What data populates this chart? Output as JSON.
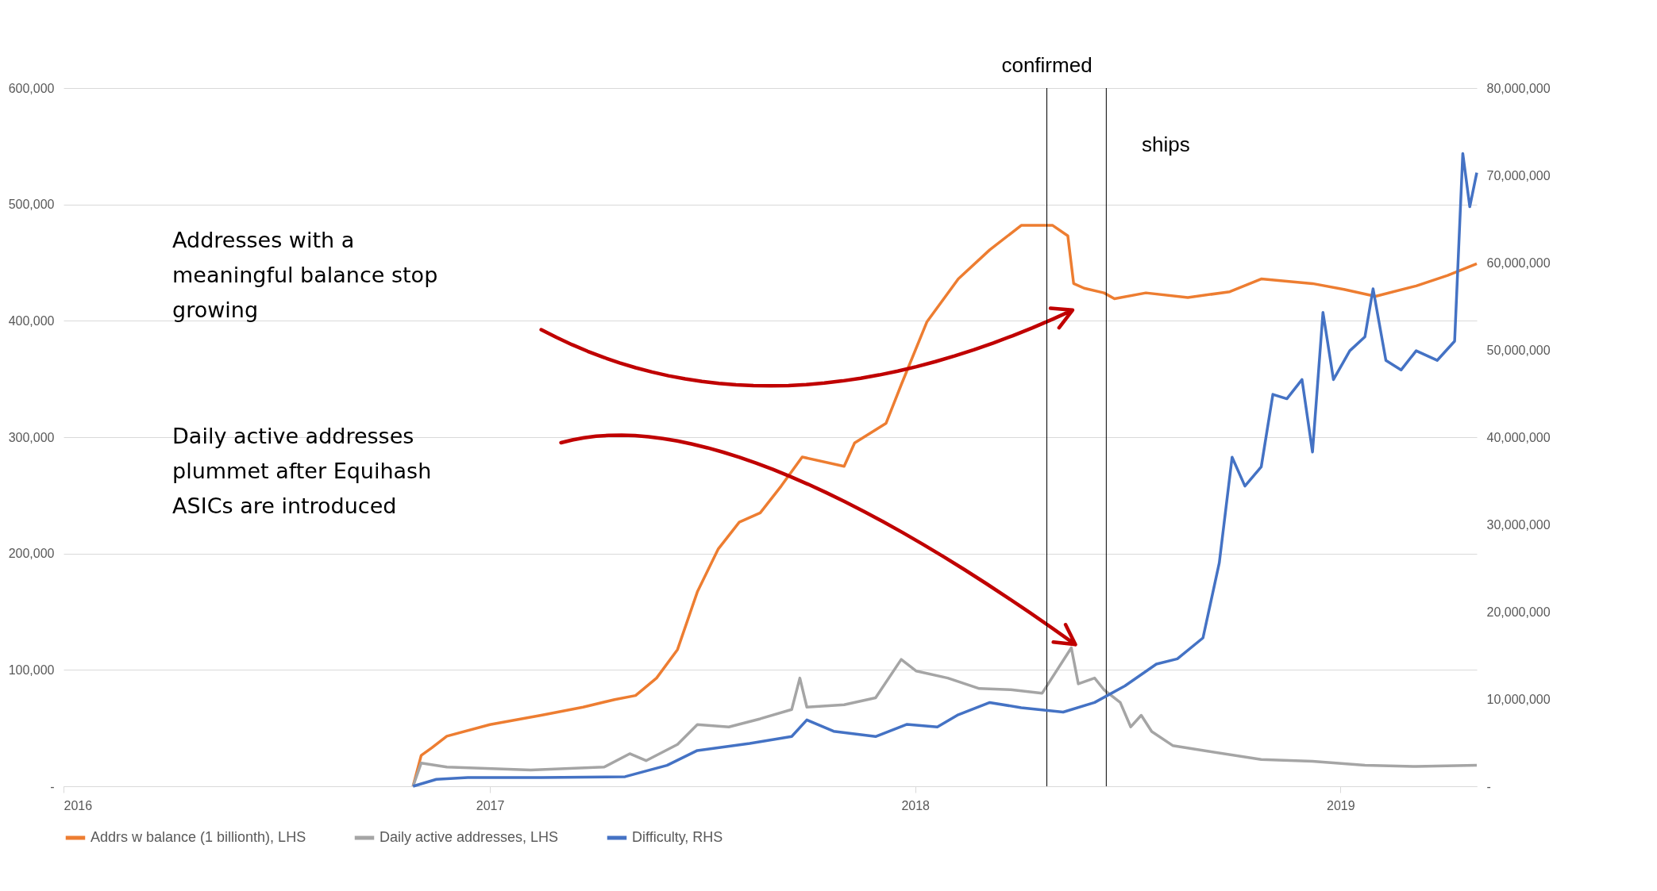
{
  "chart_data": {
    "type": "line",
    "series": [
      {
        "name": "Addrs w balance (1 billionth), LHS",
        "color": "#ed7d31",
        "x": [
          "2016-10-27",
          "2016-11-03",
          "2016-11-12",
          "2016-11-25",
          "2017-01-01",
          "2017-02-14",
          "2017-03-22",
          "2017-04-18",
          "2017-05-06",
          "2017-05-24",
          "2017-06-11",
          "2017-06-28",
          "2017-07-16",
          "2017-08-03",
          "2017-08-21",
          "2017-09-08",
          "2017-09-26",
          "2017-11-01",
          "2017-11-10",
          "2017-12-07",
          "2017-12-20",
          "2018-01-11",
          "2018-02-07",
          "2018-03-06",
          "2018-04-02",
          "2018-04-29",
          "2018-05-12",
          "2018-05-17",
          "2018-05-26",
          "2018-06-12",
          "2018-06-21",
          "2018-07-18",
          "2018-08-23",
          "2018-09-28",
          "2018-10-25",
          "2018-12-08",
          "2019-01-04",
          "2019-01-31",
          "2019-03-07",
          "2019-04-03",
          "2019-04-28"
        ],
        "values": [
          0,
          26500,
          33000,
          43000,
          53000,
          61000,
          68000,
          74500,
          78000,
          93000,
          117500,
          167000,
          204000,
          227000,
          235000,
          258000,
          283000,
          275000,
          295000,
          312000,
          345000,
          399000,
          436000,
          461000,
          482000,
          482000,
          473000,
          432000,
          428000,
          424000,
          419000,
          424000,
          420000,
          425000,
          436000,
          432000,
          427000,
          421000,
          430000,
          439000,
          449000
        ]
      },
      {
        "name": "Daily active addresses, LHS",
        "color": "#a5a5a5",
        "x": [
          "2016-10-27",
          "2016-11-03",
          "2016-11-25",
          "2017-02-05",
          "2017-04-09",
          "2017-05-01",
          "2017-05-15",
          "2017-06-11",
          "2017-06-28",
          "2017-07-25",
          "2017-08-21",
          "2017-09-17",
          "2017-09-24",
          "2017-09-30",
          "2017-11-01",
          "2017-11-28",
          "2017-12-20",
          "2018-01-02",
          "2018-01-29",
          "2018-02-25",
          "2018-03-24",
          "2018-04-20",
          "2018-05-15",
          "2018-05-21",
          "2018-06-04",
          "2018-06-12",
          "2018-06-26",
          "2018-07-05",
          "2018-07-14",
          "2018-07-23",
          "2018-08-10",
          "2018-09-10",
          "2018-10-25",
          "2018-12-08",
          "2019-01-22",
          "2019-03-07",
          "2019-04-28"
        ],
        "values": [
          0,
          20000,
          16500,
          14000,
          16500,
          28000,
          22000,
          36000,
          53000,
          51000,
          58000,
          66000,
          93000,
          68000,
          70000,
          76000,
          109000,
          99000,
          93000,
          84000,
          83000,
          80000,
          119000,
          88000,
          93000,
          83000,
          72000,
          51000,
          61000,
          47000,
          35000,
          30000,
          23000,
          21500,
          18000,
          17000,
          18000
        ]
      },
      {
        "name": "Difficulty, RHS",
        "color": "#4472c4",
        "axis": "y2",
        "x": [
          "2016-10-27",
          "2016-11-16",
          "2016-12-13",
          "2017-02-14",
          "2017-04-27",
          "2017-06-02",
          "2017-06-28",
          "2017-08-12",
          "2017-09-17",
          "2017-09-30",
          "2017-10-23",
          "2017-11-28",
          "2017-12-25",
          "2018-01-20",
          "2018-02-07",
          "2018-03-06",
          "2018-04-02",
          "2018-05-08",
          "2018-06-04",
          "2018-06-30",
          "2018-07-27",
          "2018-08-14",
          "2018-09-05",
          "2018-09-19",
          "2018-09-30",
          "2018-10-11",
          "2018-10-25",
          "2018-11-04",
          "2018-11-16",
          "2018-11-29",
          "2018-12-08",
          "2018-12-17",
          "2018-12-26",
          "2019-01-09",
          "2019-01-22",
          "2019-01-29",
          "2019-02-09",
          "2019-02-22",
          "2019-03-07",
          "2019-03-25",
          "2019-04-09",
          "2019-04-16",
          "2019-04-22",
          "2019-04-28"
        ],
        "values": [
          0,
          800000,
          1000000,
          1000000,
          1100000,
          2400000,
          4100000,
          4900000,
          5700000,
          7600000,
          6300000,
          5700000,
          7100000,
          6800000,
          8200000,
          9600000,
          9000000,
          8500000,
          9600000,
          11500000,
          14000000,
          14600000,
          17000000,
          25600000,
          37700000,
          34400000,
          36600000,
          44900000,
          44400000,
          46600000,
          38300000,
          54300000,
          46600000,
          49900000,
          51500000,
          57000000,
          48800000,
          47700000,
          49900000,
          48800000,
          51000000,
          72500000,
          66400000,
          70300000
        ]
      }
    ],
    "xlim": [
      "2016-01-01",
      "2019-04-28"
    ],
    "xticks": [
      "2016",
      "2017",
      "2018",
      "2019"
    ],
    "ylim": [
      0,
      600000
    ],
    "yticks": [
      {
        "value": 0,
        "label": "-"
      },
      {
        "value": 100000,
        "label": "100,000"
      },
      {
        "value": 200000,
        "label": "200,000"
      },
      {
        "value": 300000,
        "label": "300,000"
      },
      {
        "value": 400000,
        "label": "400,000"
      },
      {
        "value": 500000,
        "label": "500,000"
      },
      {
        "value": 600000,
        "label": "600,000"
      }
    ],
    "y2lim": [
      0,
      80000000
    ],
    "y2ticks": [
      {
        "value": 0,
        "label": "-"
      },
      {
        "value": 10000000,
        "label": "10,000,000"
      },
      {
        "value": 20000000,
        "label": "20,000,000"
      },
      {
        "value": 30000000,
        "label": "30,000,000"
      },
      {
        "value": 40000000,
        "label": "40,000,000"
      },
      {
        "value": 50000000,
        "label": "50,000,000"
      },
      {
        "value": 60000000,
        "label": "60,000,000"
      },
      {
        "value": 70000000,
        "label": "70,000,000"
      },
      {
        "value": 80000000,
        "label": "80,000,000"
      }
    ],
    "grid": "y",
    "legend": "bottom",
    "marker": "none",
    "line_style": "solid",
    "ref_lines": [
      {
        "axis": "x",
        "value": "2018-04-24",
        "label": "confirmed"
      },
      {
        "axis": "x",
        "value": "2018-06-14",
        "label": "ships"
      }
    ],
    "annotations": [
      "Addresses with a meaningful balance stop growing",
      "Daily active addresses plummet after Equihash ASICs are introduced"
    ]
  }
}
